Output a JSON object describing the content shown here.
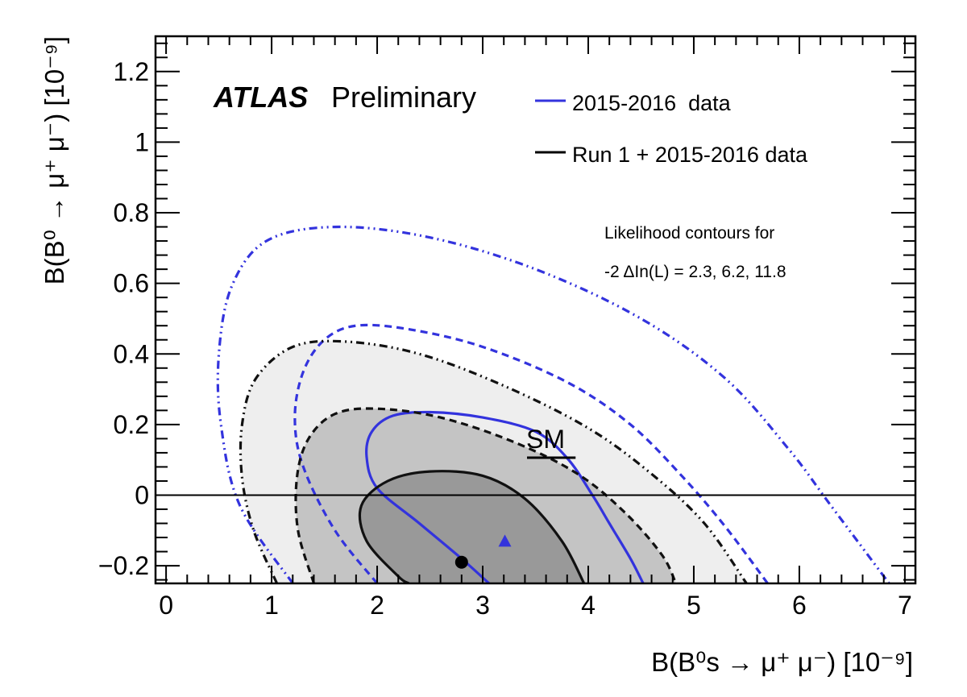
{
  "chart_data": {
    "type": "contour",
    "experiment": "ATLAS",
    "status": "Preliminary",
    "xlabel": "B(B⁰s → μ⁺ μ⁻) [10⁻⁹]",
    "ylabel": "B(B⁰ → μ⁺ μ⁻) [10⁻⁹]",
    "xlim": [
      -0.1,
      7.1
    ],
    "ylim": [
      -0.25,
      1.3
    ],
    "x_ticks": [
      0,
      1,
      2,
      3,
      4,
      5,
      6,
      7
    ],
    "y_ticks": [
      -0.2,
      0,
      0.2,
      0.4,
      0.6,
      0.8,
      1,
      1.2
    ],
    "x_tick_labels": [
      "0",
      "1",
      "2",
      "3",
      "4",
      "5",
      "6",
      "7"
    ],
    "y_tick_labels": [
      "−0.2",
      "0",
      "0.2",
      "0.4",
      "0.6",
      "0.8",
      "1",
      "1.2"
    ],
    "note_line1": "Likelihood contours for",
    "note_line2": "-2 ΔIn(L) = 2.3, 6.2, 11.8",
    "legend": [
      {
        "label": "2015-2016  data",
        "color": "#3333dd"
      },
      {
        "label": "Run 1 + 2015-2016 data",
        "color": "#000000"
      }
    ],
    "sm_label": "SM",
    "sm_point": {
      "x": 3.65,
      "y": 0.106,
      "x_err": 0.23
    },
    "best_fit_run2": {
      "x": 3.21,
      "y": -0.13,
      "color": "#3333dd",
      "marker": "triangle"
    },
    "best_fit_combined": {
      "x": 2.8,
      "y": -0.19,
      "color": "#000000",
      "marker": "circle"
    },
    "series": [
      {
        "name": "2015-2016  data",
        "level": 2.3,
        "style": "solid",
        "color": "#3333dd",
        "points": [
          [
            3.06,
            -0.25
          ],
          [
            2.8,
            -0.18
          ],
          [
            2.4,
            -0.08
          ],
          [
            2.0,
            0.02
          ],
          [
            1.9,
            0.11
          ],
          [
            1.95,
            0.18
          ],
          [
            2.15,
            0.225
          ],
          [
            2.5,
            0.235
          ],
          [
            3.0,
            0.22
          ],
          [
            3.5,
            0.18
          ],
          [
            3.8,
            0.105
          ],
          [
            4.04,
            0.0
          ],
          [
            4.2,
            -0.08
          ],
          [
            4.4,
            -0.18
          ],
          [
            4.52,
            -0.25
          ]
        ]
      },
      {
        "name": "2015-2016  data",
        "level": 6.2,
        "style": "dashed",
        "color": "#3333dd",
        "points": [
          [
            2.0,
            -0.25
          ],
          [
            1.6,
            -0.1
          ],
          [
            1.3,
            0.08
          ],
          [
            1.22,
            0.22
          ],
          [
            1.3,
            0.35
          ],
          [
            1.5,
            0.44
          ],
          [
            1.8,
            0.48
          ],
          [
            2.3,
            0.47
          ],
          [
            3.0,
            0.42
          ],
          [
            3.8,
            0.32
          ],
          [
            4.4,
            0.2
          ],
          [
            4.9,
            0.05
          ],
          [
            5.3,
            -0.09
          ],
          [
            5.7,
            -0.25
          ]
        ]
      },
      {
        "name": "2015-2016  data",
        "level": 11.8,
        "style": "dashdotdotted",
        "color": "#3333dd",
        "points": [
          [
            1.2,
            -0.25
          ],
          [
            0.7,
            -0.03
          ],
          [
            0.52,
            0.2
          ],
          [
            0.5,
            0.4
          ],
          [
            0.62,
            0.59
          ],
          [
            0.95,
            0.72
          ],
          [
            1.6,
            0.76
          ],
          [
            2.5,
            0.73
          ],
          [
            3.5,
            0.64
          ],
          [
            4.5,
            0.5
          ],
          [
            5.3,
            0.33
          ],
          [
            5.9,
            0.13
          ],
          [
            6.3,
            -0.03
          ],
          [
            6.85,
            -0.25
          ]
        ]
      },
      {
        "name": "Run 1 + 2015-2016 data",
        "level": 2.3,
        "style": "solid",
        "color": "#000000",
        "points": [
          [
            3.96,
            -0.25
          ],
          [
            3.75,
            -0.13
          ],
          [
            3.4,
            -0.01
          ],
          [
            3.0,
            0.055
          ],
          [
            2.5,
            0.067
          ],
          [
            2.1,
            0.04
          ],
          [
            1.85,
            -0.03
          ],
          [
            1.9,
            -0.13
          ],
          [
            2.2,
            -0.23
          ],
          [
            2.3,
            -0.25
          ]
        ]
      },
      {
        "name": "Run 1 + 2015-2016 data",
        "level": 6.2,
        "style": "dashed",
        "color": "#000000",
        "points": [
          [
            1.4,
            -0.25
          ],
          [
            1.25,
            -0.1
          ],
          [
            1.24,
            0.05
          ],
          [
            1.35,
            0.16
          ],
          [
            1.6,
            0.23
          ],
          [
            2.0,
            0.245
          ],
          [
            2.6,
            0.22
          ],
          [
            3.3,
            0.15
          ],
          [
            3.9,
            0.06
          ],
          [
            4.35,
            -0.05
          ],
          [
            4.7,
            -0.17
          ],
          [
            4.83,
            -0.25
          ]
        ]
      },
      {
        "name": "Run 1 + 2015-2016 data",
        "level": 11.8,
        "style": "dashdotdotted",
        "color": "#000000",
        "points": [
          [
            1.05,
            -0.25
          ],
          [
            0.83,
            -0.1
          ],
          [
            0.72,
            0.05
          ],
          [
            0.72,
            0.2
          ],
          [
            0.85,
            0.33
          ],
          [
            1.2,
            0.42
          ],
          [
            1.7,
            0.435
          ],
          [
            2.4,
            0.4
          ],
          [
            3.2,
            0.31
          ],
          [
            4.0,
            0.19
          ],
          [
            4.6,
            0.06
          ],
          [
            5.1,
            -0.08
          ],
          [
            5.5,
            -0.25
          ]
        ]
      }
    ]
  }
}
